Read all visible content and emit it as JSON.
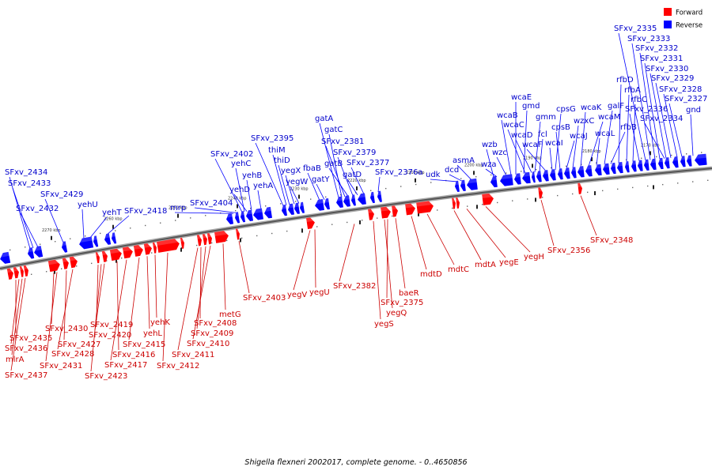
{
  "legend": {
    "forward_label": "Forward",
    "reverse_label": "Reverse",
    "forward_color": "#ff0000",
    "reverse_color": "#0000ff"
  },
  "caption": "Shigella flexneri 2002017, complete genome. - 0..4650856",
  "tick_labels": [
    "2270 kbp",
    "2260 kbp",
    "2250 kbp",
    "2240 kbp",
    "2230 kbp",
    "2220 kbp",
    "2210 kbp",
    "2200 kbp",
    "2190 kbp",
    "2180 kbp",
    "2170 kbp"
  ],
  "reverse_labels": [
    "SFxv_2434",
    "SFxv_2433",
    "SFxv_2432",
    "SFxv_2429",
    "yehU",
    "yehT",
    "SFxv_2418",
    "mrp",
    "SFxv_2404",
    "SFxv_2402",
    "yehC",
    "yehB",
    "yehD",
    "yehA",
    "SFxv_2395",
    "thiM",
    "thiD",
    "yegX",
    "yegW",
    "fbaB",
    "gatY",
    "gatA",
    "gatC",
    "SFxv_2381",
    "gatB",
    "SFxv_2379",
    "gatD",
    "SFxv_2377",
    "SFxv_2376a",
    "udk",
    "dcd",
    "asmA",
    "wzb",
    "wza",
    "wzc",
    "wcaB",
    "wcaE",
    "gmd",
    "wcaC",
    "wcaD",
    "gmm",
    "fcl",
    "wcaF",
    "wcaI",
    "cpsG",
    "cpsB",
    "wcaJ",
    "wzxC",
    "wcaK",
    "wcaM",
    "wcaL",
    "galF",
    "rfbB",
    "rfbD",
    "rfbA",
    "rfbC",
    "SFxv_2336",
    "SFxv_2335",
    "SFxv_2333",
    "SFxv_2332",
    "SFxv_2331",
    "SFxv_2330",
    "SFxv_2329",
    "SFxv_2328",
    "SFxv_2327",
    "SFxv_2334",
    "gnd"
  ],
  "forward_labels": [
    "SFxv_2435",
    "SFxv_2436",
    "mlrA",
    "SFxv_2437",
    "SFxv_2430",
    "SFxv_2427",
    "SFxv_2428",
    "SFxv_2431",
    "SFxv_2419",
    "SFxv_2420",
    "SFxv_2416",
    "SFxv_2417",
    "SFxv_2423",
    "yehK",
    "yehL",
    "SFxv_2415",
    "SFxv_2412",
    "SFxv_2408",
    "SFxv_2409",
    "SFxv_2410",
    "SFxv_2411",
    "metG",
    "SFxv_2403",
    "yegV",
    "yegU",
    "SFxv_2382",
    "baeR",
    "SFxv_2375",
    "yegQ",
    "yegS",
    "mdtD",
    "mdtC",
    "mdtA",
    "yegE",
    "yegH",
    "SFxv_2356",
    "SFxv_2348"
  ]
}
